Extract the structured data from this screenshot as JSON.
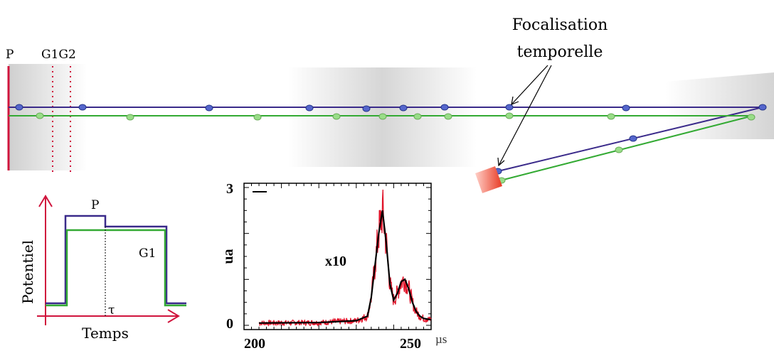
{
  "diagram": {
    "labels": {
      "plate_p": "P",
      "grids": "G1G2",
      "focus_line1": "Focalisation",
      "focus_line2": "temporelle"
    },
    "colors": {
      "beam1": "#3a2a8a",
      "beam2": "#33aa33",
      "plate": "#d0143c",
      "dot1": "#5566cc",
      "dot2": "#99dd88",
      "detector": "#e8402a"
    }
  },
  "potential_plot": {
    "ylabel": "Potentiel",
    "xlabel": "Temps",
    "label_p": "P",
    "label_g1": "G1",
    "label_tau": "τ"
  },
  "chart_data": {
    "type": "line",
    "ylabel": "ua",
    "xlim": [
      200,
      250
    ],
    "ylim": [
      0,
      3
    ],
    "x_ticks": [
      "200",
      "250"
    ],
    "y_ticks": [
      "0",
      "3"
    ],
    "x_unit": "µs",
    "annotation": "x10",
    "series": [
      {
        "color": "#000000",
        "x": [
          204,
          220,
          230,
          233,
          234,
          235,
          236,
          237,
          238,
          239,
          240,
          241,
          242,
          243,
          244,
          245,
          246,
          247,
          248,
          250
        ],
        "y": [
          0.05,
          0.06,
          0.1,
          0.2,
          0.6,
          1.3,
          2.0,
          2.5,
          1.8,
          0.9,
          0.55,
          0.7,
          0.95,
          1.0,
          0.8,
          0.5,
          0.3,
          0.2,
          0.15,
          0.12
        ]
      }
    ]
  }
}
